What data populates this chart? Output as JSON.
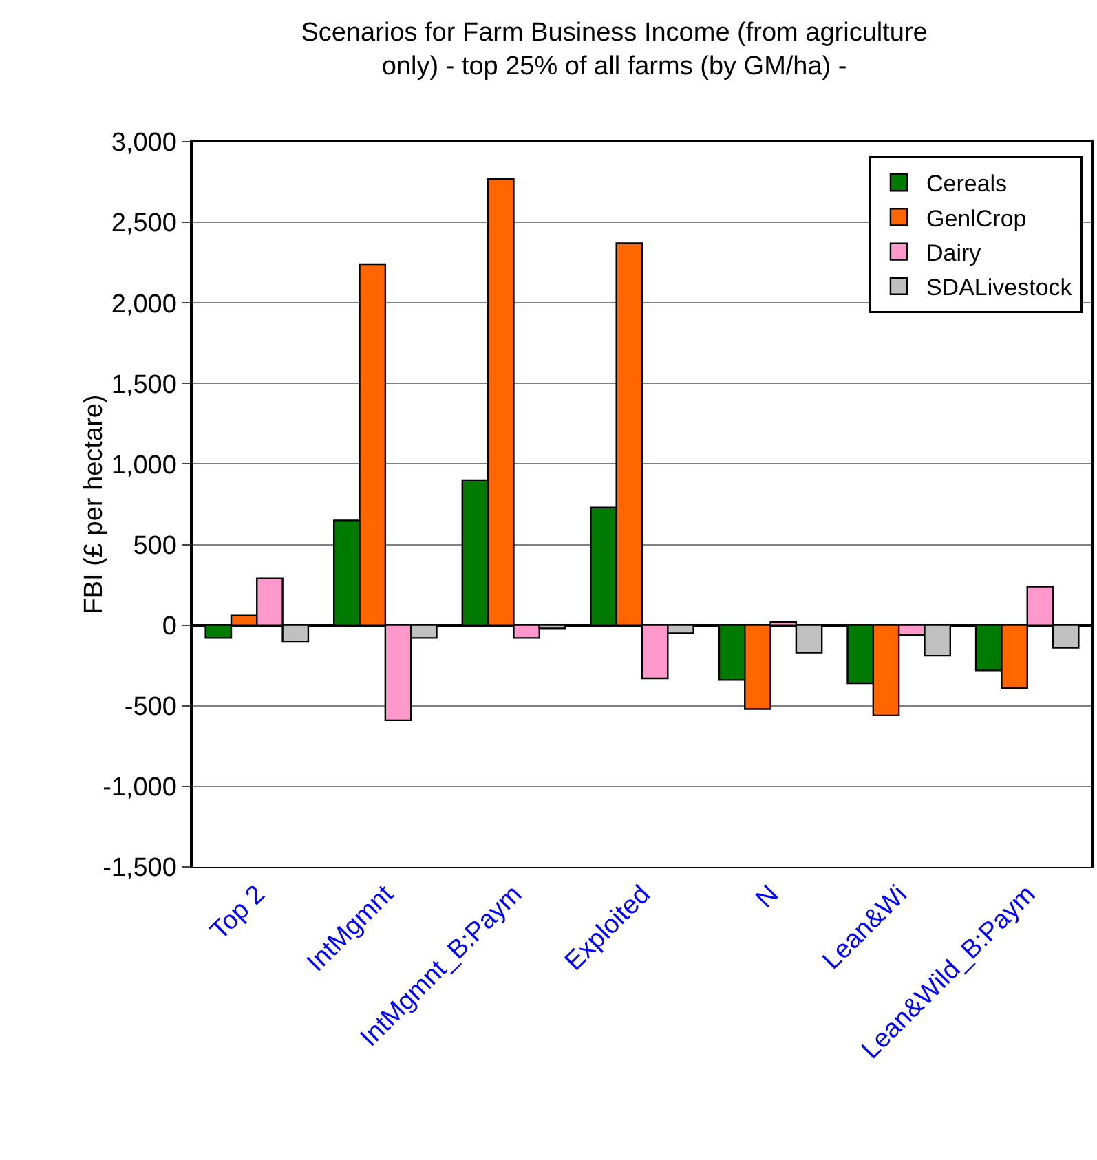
{
  "chart_data": {
    "type": "bar",
    "title": "Scenarios for Farm Business Income (from agriculture only) - top 25% of all farms (by GM/ha) -",
    "ylabel": "FBI (£ per hectare)",
    "categories": [
      "Top 2",
      "IntMgmnt",
      "IntMgmnt_B:Paym",
      "Exploited",
      "N",
      "Lean&Wi",
      "Lean&Wild_B:Paym"
    ],
    "series": [
      {
        "name": "Cereals",
        "color": "#007a00",
        "values": [
          -80,
          650,
          900,
          730,
          -340,
          -360,
          -280
        ]
      },
      {
        "name": "GenlCrop",
        "color": "#ff6600",
        "values": [
          60,
          2240,
          2770,
          2370,
          -520,
          -560,
          -390
        ]
      },
      {
        "name": "Dairy",
        "color": "#ff99cc",
        "values": [
          290,
          -590,
          -80,
          -330,
          20,
          -60,
          240
        ]
      },
      {
        "name": "SDALivestock",
        "color": "#c0c0c0",
        "values": [
          -100,
          -80,
          -20,
          -50,
          -170,
          -190,
          -140
        ]
      }
    ],
    "ylim": [
      -1500,
      3000
    ],
    "yticks": [
      {
        "value": -1500,
        "label": "-1,500"
      },
      {
        "value": -1000,
        "label": "-1,000"
      },
      -500,
      0,
      500,
      {
        "value": 1000,
        "label": "1,000"
      },
      {
        "value": 1500,
        "label": "1,500"
      },
      {
        "value": 2000,
        "label": "2,000"
      },
      {
        "value": 2500,
        "label": "2,500"
      },
      {
        "value": 3000,
        "label": "3,000"
      }
    ],
    "grid": "y",
    "legend": "top right"
  }
}
